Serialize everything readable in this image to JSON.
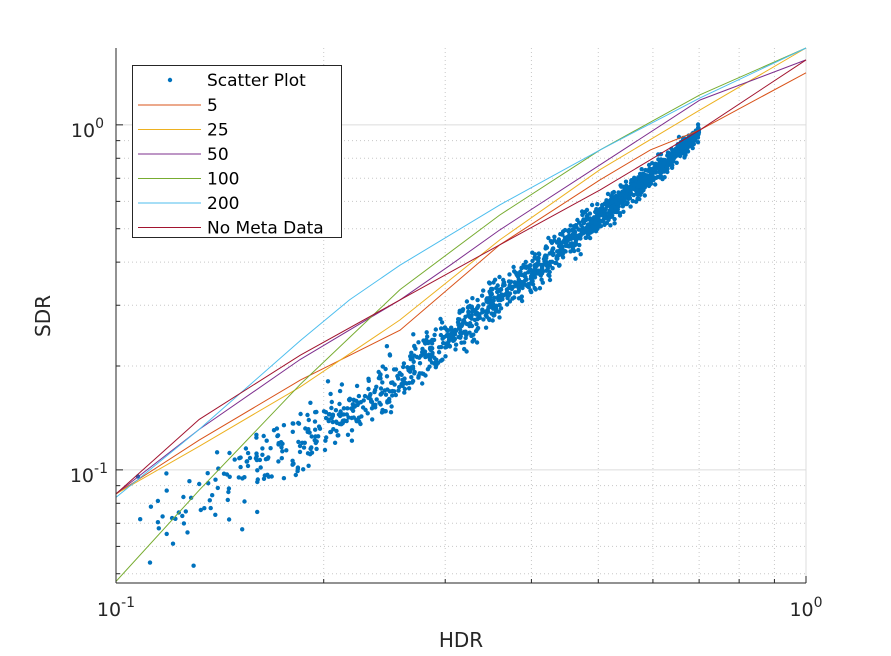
{
  "chart_data": {
    "type": "scatter",
    "title": "",
    "xlabel": "HDR",
    "ylabel": "SDR",
    "xscale": "log",
    "yscale": "log",
    "xlim": [
      0.1,
      1.0
    ],
    "ylim": [
      0.047,
      1.67
    ],
    "grid": "on (major solid, minor dotted)",
    "legend_placement": "top-left",
    "x_tick_labels": [
      {
        "value": 0.1,
        "base": "10",
        "exp": "-1"
      },
      {
        "value": 1,
        "base": "10",
        "exp": "0"
      }
    ],
    "y_tick_labels": [
      {
        "value": 0.1,
        "base": "10",
        "exp": "-1"
      },
      {
        "value": 1,
        "base": "10",
        "exp": "0"
      }
    ],
    "scatter": {
      "name": "Scatter Plot",
      "color": "#0072BD",
      "approx_count": 1500,
      "trend": [
        [
          0.1,
          0.06
        ],
        [
          0.12,
          0.075
        ],
        [
          0.15,
          0.098
        ],
        [
          0.2,
          0.13
        ],
        [
          0.25,
          0.175
        ],
        [
          0.3,
          0.235
        ],
        [
          0.4,
          0.37
        ],
        [
          0.5,
          0.54
        ],
        [
          0.6,
          0.72
        ],
        [
          0.7,
          0.95
        ]
      ],
      "x_range": [
        0.1,
        0.7
      ]
    },
    "series": [
      {
        "name": "5",
        "color": "#D95319",
        "x": [
          0.1,
          0.132,
          0.185,
          0.258,
          0.36,
          0.503,
          0.595,
          0.702,
          1.0
        ],
        "y": [
          0.0852,
          0.122,
          0.182,
          0.254,
          0.449,
          0.693,
          0.846,
          0.967,
          1.415
        ]
      },
      {
        "name": "25",
        "color": "#EDB120",
        "x": [
          0.1,
          0.132,
          0.185,
          0.258,
          0.36,
          0.503,
          0.702,
          1.0
        ],
        "y": [
          0.0852,
          0.117,
          0.174,
          0.272,
          0.464,
          0.742,
          1.105,
          1.67
        ]
      },
      {
        "name": "50",
        "color": "#7E2F8E",
        "x": [
          0.1,
          0.132,
          0.185,
          0.258,
          0.305,
          0.36,
          0.503,
          0.702,
          1.0
        ],
        "y": [
          0.0852,
          0.131,
          0.209,
          0.311,
          0.392,
          0.496,
          0.766,
          1.18,
          1.543
        ]
      },
      {
        "name": "100",
        "color": "#77AC30",
        "x": [
          0.1,
          0.132,
          0.185,
          0.258,
          0.36,
          0.503,
          0.702,
          1.0
        ],
        "y": [
          0.0475,
          0.0873,
          0.177,
          0.333,
          0.548,
          0.846,
          1.222,
          1.67
        ]
      },
      {
        "name": "200",
        "color": "#4DBEEE",
        "x": [
          0.1,
          0.132,
          0.185,
          0.218,
          0.258,
          0.36,
          0.503,
          0.702,
          1.0
        ],
        "y": [
          0.0832,
          0.131,
          0.237,
          0.311,
          0.392,
          0.586,
          0.846,
          1.197,
          1.67
        ]
      },
      {
        "name": "No Meta Data",
        "color": "#A2142F",
        "x": [
          0.1,
          0.132,
          0.185,
          0.258,
          0.36,
          0.503,
          0.595,
          0.702,
          1.0
        ],
        "y": [
          0.0852,
          0.14,
          0.215,
          0.311,
          0.449,
          0.648,
          0.792,
          0.967,
          1.543
        ]
      }
    ]
  }
}
